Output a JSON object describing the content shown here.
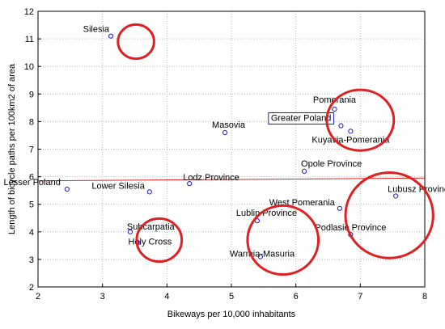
{
  "chart_data": {
    "type": "scatter",
    "xlabel": "Bikeways per 10,000 inhabitants",
    "ylabel": "Length of bicycle paths per 100km2 of area",
    "xlim": [
      2,
      8
    ],
    "ylim": [
      2,
      12
    ],
    "xticks": [
      "2",
      "3",
      "4",
      "5",
      "6",
      "7",
      "8"
    ],
    "yticks": [
      "2",
      "3",
      "4",
      "5",
      "6",
      "7",
      "8",
      "9",
      "10",
      "11",
      "12"
    ],
    "grid": true,
    "points": [
      {
        "label": "Silesia",
        "x": 3.13,
        "y": 11.1
      },
      {
        "label": "Pomerania",
        "x": 6.6,
        "y": 8.45
      },
      {
        "label": "Greater Poland",
        "x": 6.7,
        "y": 7.85
      },
      {
        "label": "Kuyavia-Pomerania",
        "x": 6.85,
        "y": 7.65
      },
      {
        "label": "Masovia",
        "x": 4.9,
        "y": 7.6
      },
      {
        "label": "Opole Province",
        "x": 6.13,
        "y": 6.2
      },
      {
        "label": "Lodz Province",
        "x": 4.35,
        "y": 5.75
      },
      {
        "label": "Lesser Poland",
        "x": 2.45,
        "y": 5.55
      },
      {
        "label": "Lower Silesia",
        "x": 3.73,
        "y": 5.45
      },
      {
        "label": "Lubusz Province",
        "x": 7.55,
        "y": 5.3
      },
      {
        "label": "West Pomerania",
        "x": 6.68,
        "y": 4.85
      },
      {
        "label": "Lublin Province",
        "x": 5.4,
        "y": 4.4
      },
      {
        "label": "Subcarpatia",
        "x": 3.43,
        "y": 4.0
      },
      {
        "label": "Podlasie Province",
        "x": 6.85,
        "y": 3.9
      },
      {
        "label": "Holy Cross",
        "x": 3.55,
        "y": 3.6
      },
      {
        "label": "Warmia-Masuria",
        "x": 5.45,
        "y": 3.1
      }
    ],
    "highlighted_label": "Greater Poland",
    "reference_line": {
      "x": [
        2,
        8
      ],
      "y": [
        5.85,
        5.95
      ],
      "color": "#e02020"
    },
    "ellipses": [
      {
        "cx": 3.52,
        "cy": 10.9,
        "rx": 0.28,
        "ry": 0.62
      },
      {
        "cx": 7.0,
        "cy": 8.05,
        "rx": 0.52,
        "ry": 1.1
      },
      {
        "cx": 7.45,
        "cy": 4.6,
        "rx": 0.68,
        "ry": 1.55
      },
      {
        "cx": 5.8,
        "cy": 3.7,
        "rx": 0.55,
        "ry": 1.25
      },
      {
        "cx": 3.88,
        "cy": 3.7,
        "rx": 0.35,
        "ry": 0.78
      }
    ],
    "colors": {
      "points": "#1a1adb",
      "ellipse": "#e02020",
      "grid": "#b8b8b8"
    }
  }
}
